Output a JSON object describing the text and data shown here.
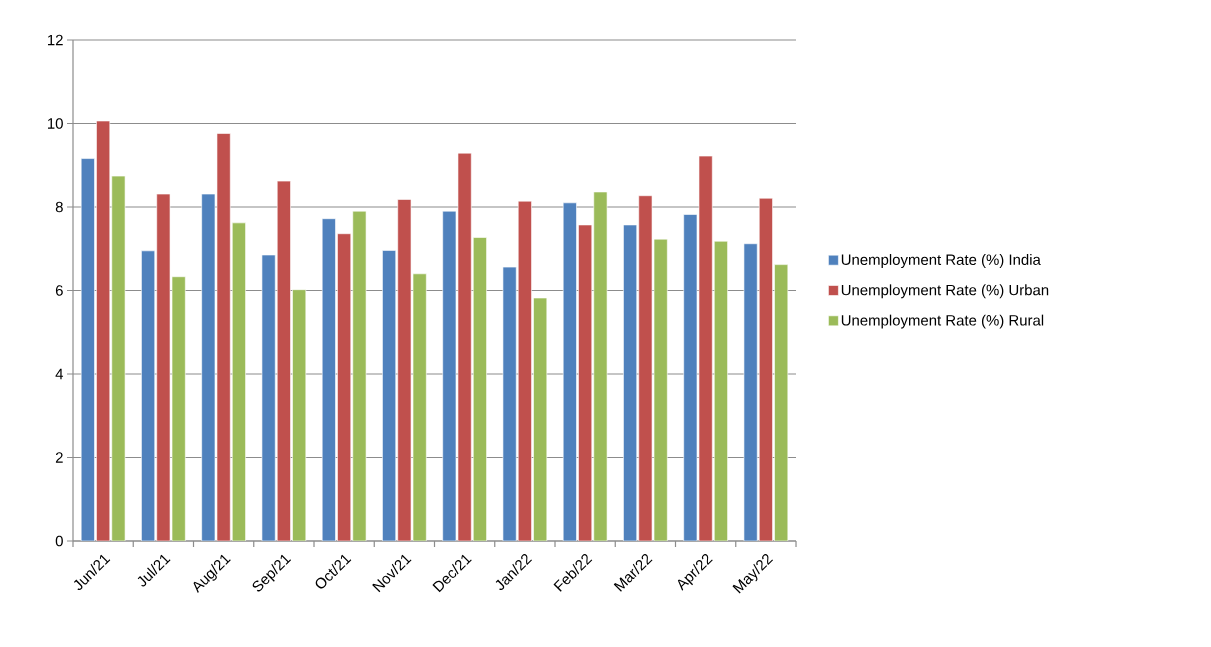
{
  "chart_data": {
    "type": "bar",
    "categories": [
      "Jun/21",
      "Jul/21",
      "Aug/21",
      "Sep/21",
      "Oct/21",
      "Nov/21",
      "Dec/21",
      "Jan/22",
      "Feb/22",
      "Mar/22",
      "Apr/22",
      "May/22"
    ],
    "series": [
      {
        "name": "Unemployment Rate (%) India",
        "color": "#4f81bd",
        "values": [
          9.16,
          6.95,
          8.31,
          6.85,
          7.72,
          6.96,
          7.9,
          6.56,
          8.1,
          7.57,
          7.82,
          7.12
        ]
      },
      {
        "name": "Unemployment Rate (%) Urban",
        "color": "#c0504d",
        "values": [
          10.06,
          8.31,
          9.76,
          8.62,
          7.36,
          8.18,
          9.29,
          8.14,
          7.57,
          8.27,
          9.22,
          8.21
        ]
      },
      {
        "name": "Unemployment Rate (%) Rural",
        "color": "#9bbb59",
        "values": [
          8.74,
          6.33,
          7.62,
          6.02,
          7.9,
          6.4,
          7.27,
          5.82,
          8.36,
          7.23,
          7.18,
          6.62
        ]
      }
    ],
    "ylim": [
      0,
      12
    ],
    "yticks": [
      0,
      2,
      4,
      6,
      8,
      10,
      12
    ],
    "grid": "y",
    "legend": "right"
  }
}
